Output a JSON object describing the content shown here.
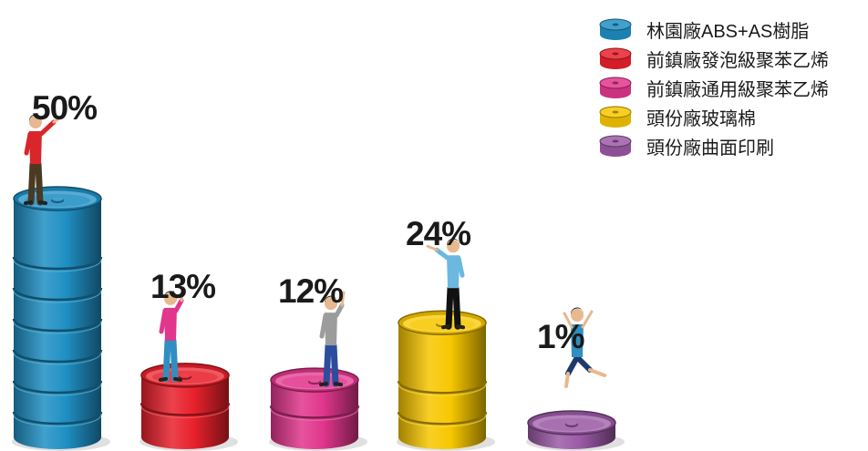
{
  "chart_data": {
    "type": "bar",
    "categories": [
      "林園廠ABS+AS樹脂",
      "前鎮廠發泡級聚苯乙烯",
      "前鎮廠通用級聚苯乙烯",
      "頭份廠玻璃棉",
      "頭份廠曲面印刷"
    ],
    "values": [
      50,
      13,
      12,
      24,
      1
    ],
    "labels": [
      "50%",
      "13%",
      "12%",
      "24%",
      "1%"
    ],
    "colors": [
      "#1f8fc4",
      "#e8212c",
      "#e0368c",
      "#f7c700",
      "#9b5aa6"
    ],
    "legend": "top-right",
    "grid": false
  }
}
